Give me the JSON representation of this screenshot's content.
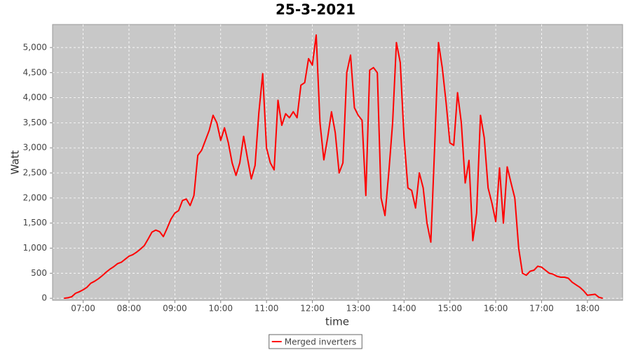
{
  "chart_data": {
    "type": "line",
    "title": "25-3-2021",
    "x_label": "time",
    "y_label": "Watt",
    "x": [
      "06:35",
      "06:40",
      "06:45",
      "06:50",
      "06:55",
      "07:00",
      "07:05",
      "07:10",
      "07:15",
      "07:20",
      "07:25",
      "07:30",
      "07:35",
      "07:40",
      "07:45",
      "07:50",
      "07:55",
      "08:00",
      "08:05",
      "08:10",
      "08:15",
      "08:20",
      "08:25",
      "08:30",
      "08:35",
      "08:40",
      "08:45",
      "08:50",
      "08:55",
      "09:00",
      "09:05",
      "09:10",
      "09:15",
      "09:20",
      "09:25",
      "09:30",
      "09:35",
      "09:40",
      "09:45",
      "09:50",
      "09:55",
      "10:00",
      "10:05",
      "10:10",
      "10:15",
      "10:20",
      "10:25",
      "10:30",
      "10:35",
      "10:40",
      "10:45",
      "10:50",
      "10:55",
      "11:00",
      "11:05",
      "11:10",
      "11:15",
      "11:20",
      "11:25",
      "11:30",
      "11:35",
      "11:40",
      "11:45",
      "11:50",
      "11:55",
      "12:00",
      "12:05",
      "12:10",
      "12:15",
      "12:20",
      "12:25",
      "12:30",
      "12:35",
      "12:40",
      "12:45",
      "12:50",
      "12:55",
      "13:00",
      "13:05",
      "13:10",
      "13:15",
      "13:20",
      "13:25",
      "13:30",
      "13:35",
      "13:40",
      "13:45",
      "13:50",
      "13:55",
      "14:00",
      "14:05",
      "14:10",
      "14:15",
      "14:20",
      "14:25",
      "14:30",
      "14:35",
      "14:40",
      "14:45",
      "14:50",
      "14:55",
      "15:00",
      "15:05",
      "15:10",
      "15:15",
      "15:20",
      "15:25",
      "15:30",
      "15:35",
      "15:40",
      "15:45",
      "15:50",
      "15:55",
      "16:00",
      "16:05",
      "16:10",
      "16:15",
      "16:20",
      "16:25",
      "16:30",
      "16:35",
      "16:40",
      "16:45",
      "16:50",
      "16:55",
      "17:00",
      "17:05",
      "17:10",
      "17:15",
      "17:20",
      "17:25",
      "17:30",
      "17:35",
      "17:40",
      "17:45",
      "17:50",
      "17:55",
      "18:00",
      "18:05",
      "18:10",
      "18:15",
      "18:20"
    ],
    "series": [
      {
        "name": "Merged inverters",
        "color": "#ff0000",
        "values": [
          0,
          10,
          30,
          100,
          130,
          170,
          220,
          300,
          340,
          390,
          450,
          520,
          580,
          630,
          690,
          720,
          780,
          840,
          870,
          920,
          980,
          1050,
          1180,
          1320,
          1360,
          1330,
          1230,
          1400,
          1580,
          1700,
          1750,
          1950,
          1980,
          1850,
          2050,
          2850,
          2950,
          3150,
          3350,
          3650,
          3500,
          3150,
          3400,
          3100,
          2700,
          2450,
          2700,
          3230,
          2800,
          2380,
          2650,
          3700,
          4480,
          3000,
          2700,
          2560,
          3950,
          3450,
          3680,
          3600,
          3720,
          3600,
          4250,
          4300,
          4780,
          4650,
          5250,
          3500,
          2760,
          3200,
          3720,
          3300,
          2500,
          2700,
          4500,
          4850,
          3800,
          3650,
          3550,
          2050,
          4550,
          4600,
          4500,
          2000,
          1650,
          2500,
          3500,
          5100,
          4700,
          3200,
          2200,
          2150,
          1800,
          2500,
          2200,
          1500,
          1120,
          3000,
          5100,
          4600,
          3900,
          3100,
          3050,
          4100,
          3500,
          2300,
          2750,
          1150,
          1700,
          3650,
          3200,
          2200,
          1900,
          1530,
          2600,
          1500,
          2620,
          2300,
          2000,
          1000,
          500,
          460,
          540,
          560,
          640,
          620,
          560,
          500,
          480,
          440,
          420,
          420,
          400,
          320,
          270,
          220,
          150,
          60,
          70,
          80,
          20,
          0
        ]
      }
    ],
    "xlim": [
      "06:20",
      "18:46"
    ],
    "xticks": [
      "07:00",
      "08:00",
      "09:00",
      "10:00",
      "11:00",
      "12:00",
      "13:00",
      "14:00",
      "15:00",
      "16:00",
      "17:00",
      "18:00"
    ],
    "ylim": [
      -40,
      5460
    ],
    "yticks": [
      0,
      500,
      {
        "value": 1000,
        "label": "1,000"
      },
      {
        "value": 1500,
        "label": "1,500"
      },
      {
        "value": 2000,
        "label": "2,000"
      },
      {
        "value": 2500,
        "label": "2,500"
      },
      {
        "value": 3000,
        "label": "3,000"
      },
      {
        "value": 3500,
        "label": "3,500"
      },
      {
        "value": 4000,
        "label": "4,000"
      },
      {
        "value": 4500,
        "label": "4,500"
      },
      {
        "value": 5000,
        "label": "5,000"
      }
    ],
    "grid": true,
    "legend": "bottom"
  }
}
